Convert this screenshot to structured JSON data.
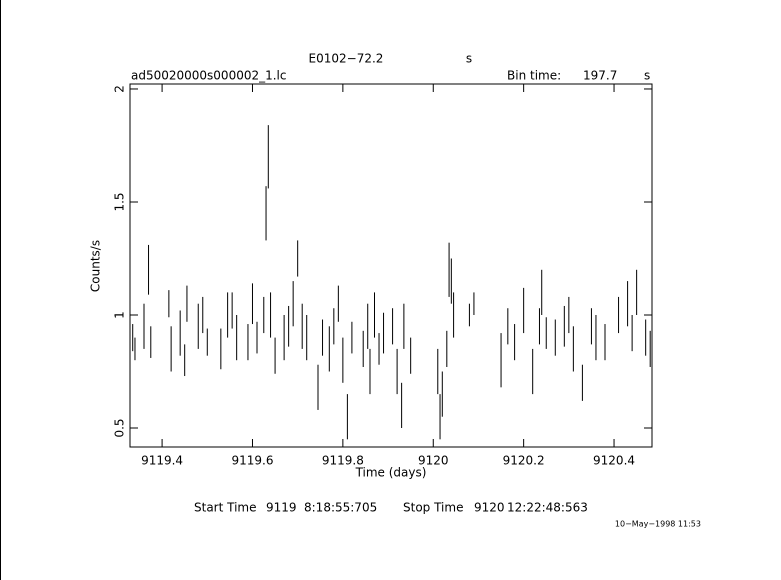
{
  "chart_data": {
    "type": "errorbar",
    "title": "E0102−72.2",
    "title_unit": "s",
    "subtitle": "ad50020000s000002_1.lc",
    "bin_time_label": "Bin time:",
    "bin_time": "197.7",
    "bin_time_unit": "s",
    "x_label": "Time (days)",
    "y_label": "Counts/s",
    "start_label": "Start Time",
    "start_day": "9119",
    "start_time": "8:18:55:705",
    "stop_label": "Stop Time",
    "stop_day": "9120",
    "stop_time": "12:22:48:563",
    "date_stamp": "10−May−1998 11:53",
    "color": "#000000",
    "xlim": [
      9119.329,
      9120.484
    ],
    "ylim": [
      0.416,
      2.022
    ],
    "xticks": [
      9119.4,
      9119.6,
      9119.8,
      9120,
      9120.2,
      9120.4
    ],
    "yticks": [
      0.5,
      1,
      1.5,
      2
    ],
    "x": [
      9119.335,
      9119.34,
      9119.36,
      9119.37,
      9119.375,
      9119.415,
      9119.42,
      9119.44,
      9119.45,
      9119.455,
      9119.48,
      9119.49,
      9119.5,
      9119.53,
      9119.545,
      9119.555,
      9119.565,
      9119.59,
      9119.6,
      9119.61,
      9119.625,
      9119.63,
      9119.635,
      9119.64,
      9119.65,
      9119.67,
      9119.68,
      9119.69,
      9119.7,
      9119.71,
      9119.72,
      9119.745,
      9119.755,
      9119.77,
      9119.78,
      9119.79,
      9119.8,
      9119.81,
      9119.82,
      9119.845,
      9119.855,
      9119.86,
      9119.87,
      9119.88,
      9119.89,
      9119.91,
      9119.92,
      9119.93,
      9119.935,
      9119.95,
      9120.01,
      9120.015,
      9120.02,
      9120.03,
      9120.035,
      9120.04,
      9120.045,
      9120.08,
      9120.09,
      9120.15,
      9120.165,
      9120.18,
      9120.2,
      9120.22,
      9120.235,
      9120.24,
      9120.25,
      9120.27,
      9120.29,
      9120.3,
      9120.31,
      9120.33,
      9120.35,
      9120.36,
      9120.38,
      9120.41,
      9120.43,
      9120.44,
      9120.45,
      9120.47,
      9120.48
    ],
    "values": [
      0.9,
      0.85,
      0.95,
      1.2,
      0.88,
      1.05,
      0.85,
      0.92,
      0.8,
      1.05,
      0.95,
      1.0,
      0.88,
      0.85,
      1.0,
      1.02,
      0.9,
      0.88,
      1.05,
      0.9,
      1.0,
      1.45,
      1.7,
      1.0,
      0.82,
      0.9,
      0.95,
      1.05,
      1.25,
      0.95,
      0.9,
      0.68,
      0.9,
      0.85,
      0.95,
      1.05,
      0.8,
      0.55,
      0.9,
      0.85,
      0.95,
      0.75,
      1.0,
      0.85,
      0.92,
      0.95,
      0.75,
      0.6,
      0.95,
      0.82,
      0.75,
      0.55,
      0.65,
      0.85,
      1.2,
      1.15,
      1.0,
      1.0,
      1.05,
      0.8,
      0.95,
      0.88,
      1.02,
      0.75,
      0.95,
      1.1,
      0.92,
      0.9,
      0.95,
      1.0,
      0.85,
      0.7,
      0.95,
      0.9,
      0.88,
      1.0,
      1.05,
      0.92,
      1.1,
      0.9,
      0.85
    ],
    "errors": [
      0.06,
      0.05,
      0.1,
      0.11,
      0.07,
      0.06,
      0.1,
      0.1,
      0.07,
      0.08,
      0.1,
      0.08,
      0.06,
      0.09,
      0.1,
      0.08,
      0.1,
      0.08,
      0.09,
      0.07,
      0.08,
      0.12,
      0.14,
      0.1,
      0.08,
      0.1,
      0.09,
      0.1,
      0.08,
      0.1,
      0.1,
      0.1,
      0.08,
      0.1,
      0.08,
      0.08,
      0.1,
      0.1,
      0.07,
      0.08,
      0.1,
      0.1,
      0.1,
      0.07,
      0.09,
      0.08,
      0.1,
      0.1,
      0.1,
      0.08,
      0.1,
      0.1,
      0.1,
      0.08,
      0.12,
      0.1,
      0.1,
      0.05,
      0.05,
      0.12,
      0.08,
      0.08,
      0.1,
      0.1,
      0.08,
      0.1,
      0.07,
      0.08,
      0.09,
      0.08,
      0.1,
      0.08,
      0.08,
      0.1,
      0.08,
      0.08,
      0.1,
      0.08,
      0.1,
      0.08,
      0.08
    ]
  }
}
